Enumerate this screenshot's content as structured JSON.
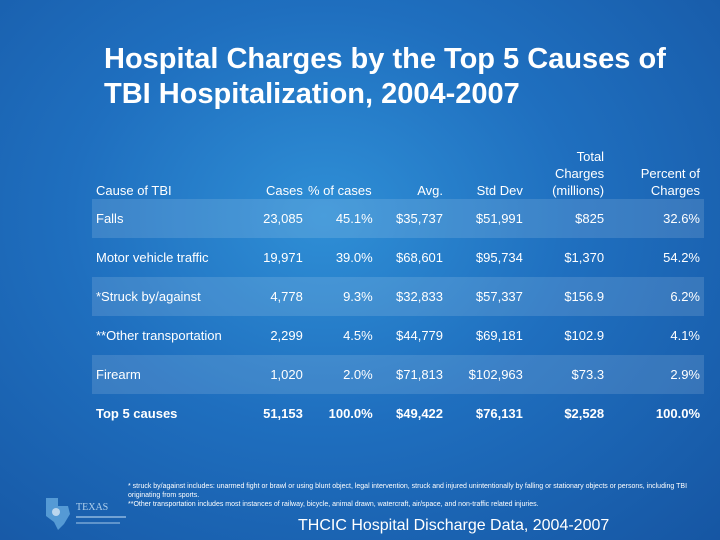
{
  "title": "Hospital Charges by the Top 5 Causes of TBI Hospitalization, 2004-2007",
  "table": {
    "headers": [
      "Cause of TBI",
      "Cases",
      "% of cases",
      "Avg.",
      "Std Dev",
      "Total Charges (millions)",
      "Percent of Charges"
    ],
    "rows": [
      [
        "Falls",
        "23,085",
        "45.1%",
        "$35,737",
        "$51,991",
        "$825",
        "32.6%"
      ],
      [
        "Motor vehicle traffic",
        "19,971",
        "39.0%",
        "$68,601",
        "$95,734",
        "$1,370",
        "54.2%"
      ],
      [
        "*Struck by/against",
        "4,778",
        "9.3%",
        "$32,833",
        "$57,337",
        "$156.9",
        "6.2%"
      ],
      [
        "**Other transportation",
        "2,299",
        "4.5%",
        "$44,779",
        "$69,181",
        "$102.9",
        "4.1%"
      ],
      [
        "Firearm",
        "1,020",
        "2.0%",
        "$71,813",
        "$102,963",
        "$73.3",
        "2.9%"
      ],
      [
        "Top 5 causes",
        "51,153",
        "100.0%",
        "$49,422",
        "$76,131",
        "$2,528",
        "100.0%"
      ]
    ]
  },
  "footnotes": {
    "line1": "* struck by/against includes: unarmed fight or brawl or using blunt object, legal intervention, struck and injured unintentionally by falling or stationary objects or persons, including TBI originating from sports.",
    "line2": "**Other transportation includes most instances of railway, bicycle, animal drawn, watercraft, air/space, and non-traffic related injuries."
  },
  "source": "THCIC Hospital Discharge Data, 2004-2007",
  "logo": {
    "text": "TEXAS"
  }
}
